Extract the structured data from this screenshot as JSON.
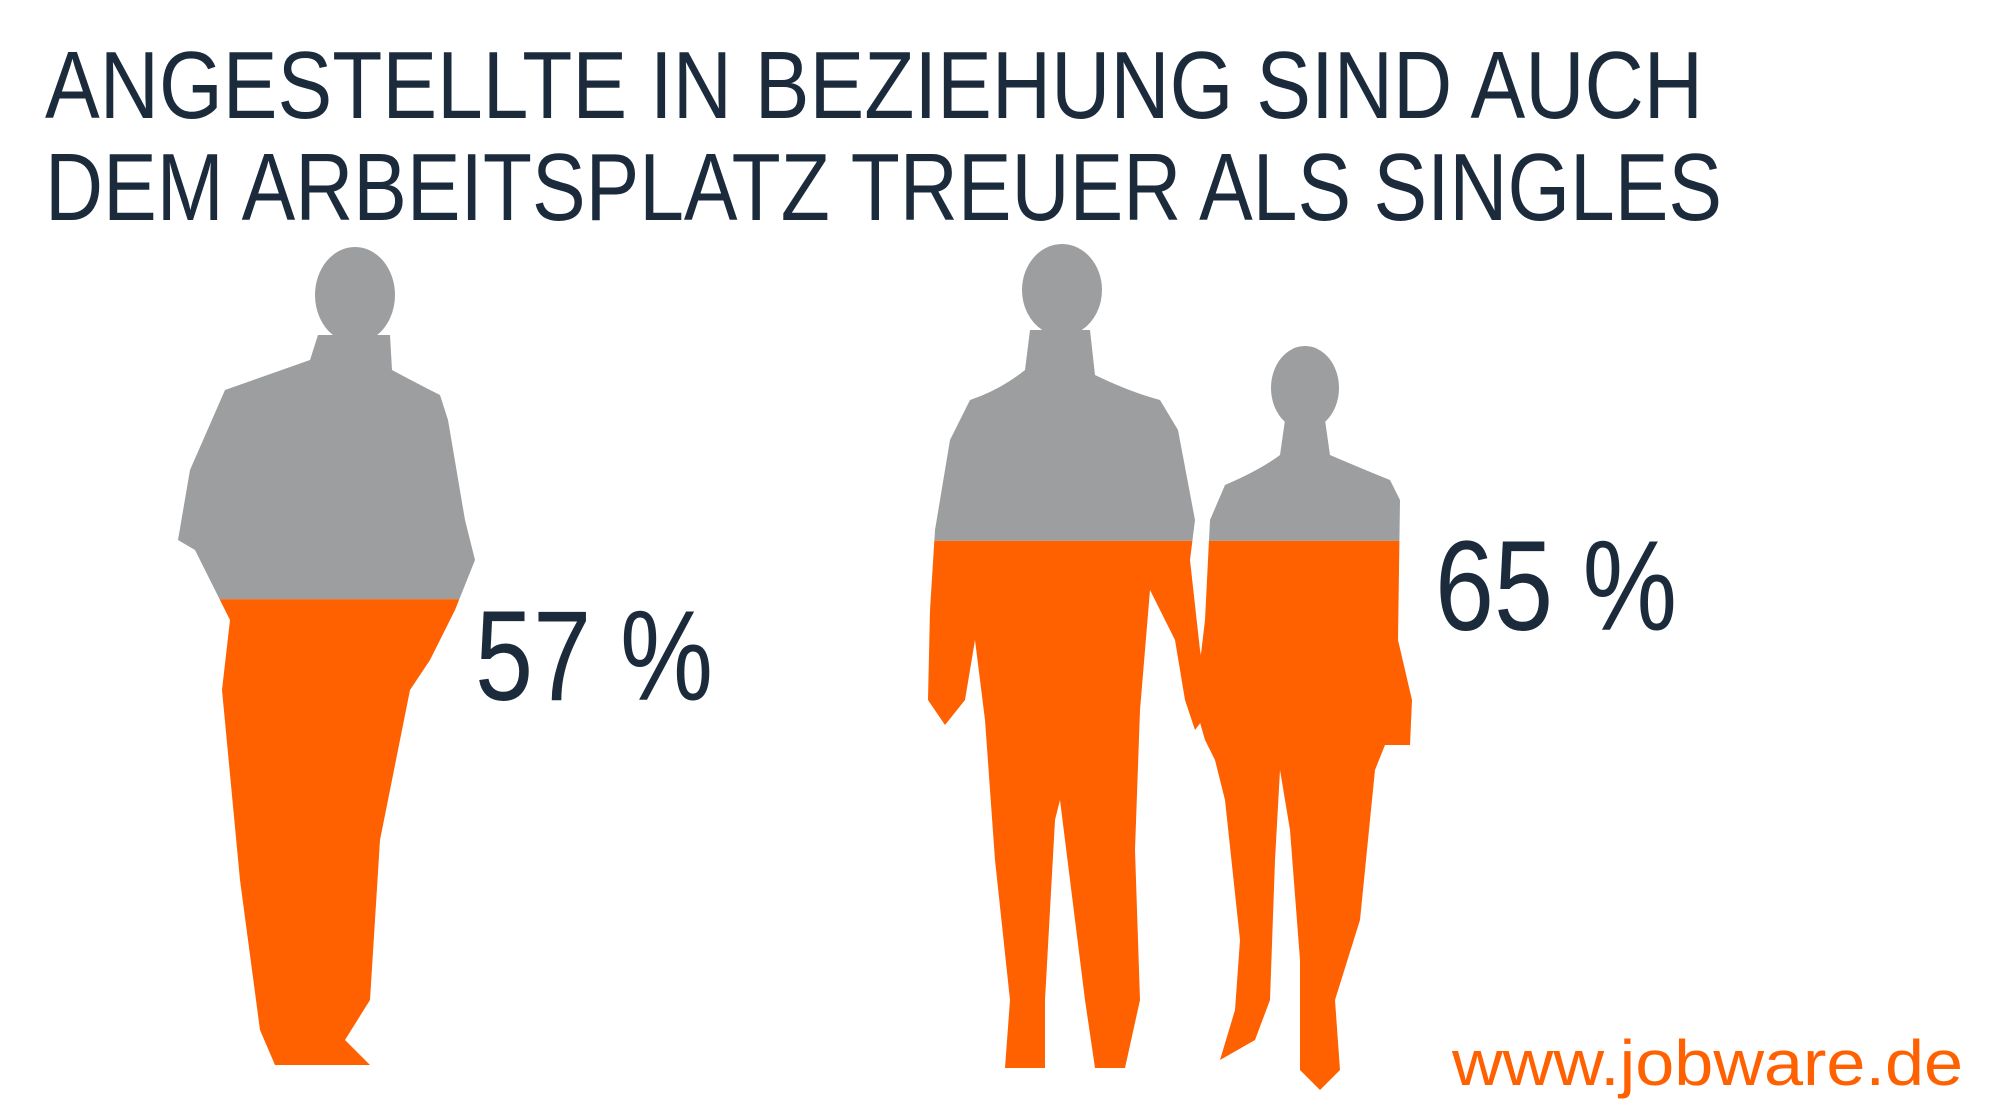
{
  "chart_data": {
    "type": "pictogram",
    "title": [
      "ANGESTELLTE IN BEZIEHUNG SIND AUCH",
      "DEM ARBEITSPLATZ TREUER ALS SINGLES"
    ],
    "categories": [
      null,
      null
    ],
    "values": [
      57,
      65
    ],
    "value_labels": [
      "57 %",
      "65 %"
    ],
    "color": "#ff6000",
    "background_color": "#9d9e9f",
    "ylim": [
      0,
      100
    ],
    "source": "www.jobware.de"
  }
}
